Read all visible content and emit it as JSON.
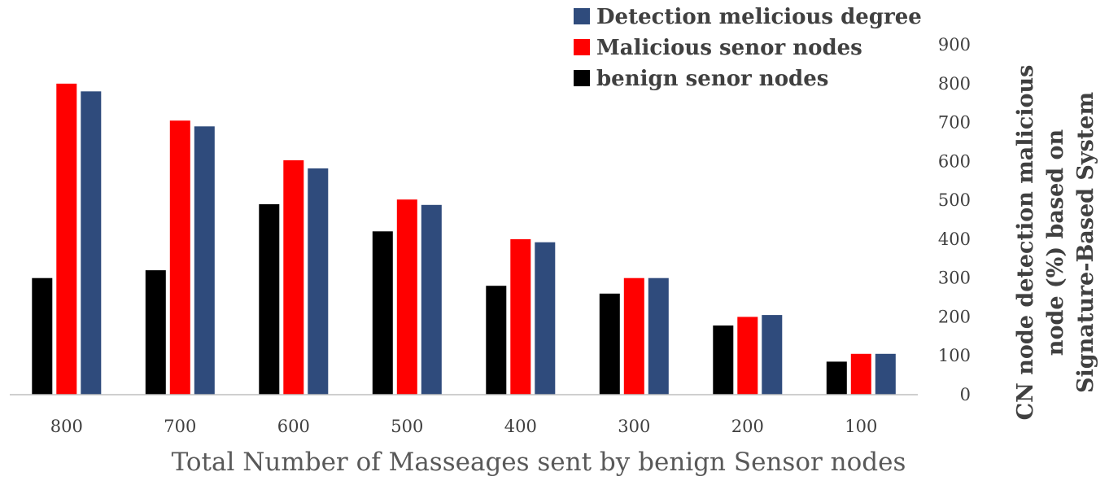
{
  "chart_data": {
    "type": "bar",
    "title": "",
    "xlabel": "Total Number of Masseages sent by benign Sensor nodes",
    "ylabel_lines": [
      "CN node detection malicious",
      "node (%) based on",
      "Signature-Based System"
    ],
    "y_axis_side": "right",
    "ylim": [
      0,
      900
    ],
    "yticks": [
      0,
      100,
      200,
      300,
      400,
      500,
      600,
      700,
      800,
      900
    ],
    "categories": [
      "800",
      "700",
      "600",
      "500",
      "400",
      "300",
      "200",
      "100"
    ],
    "series": [
      {
        "name": "benign senor nodes",
        "color": "#000000",
        "values": [
          300,
          320,
          490,
          420,
          280,
          260,
          178,
          85
        ]
      },
      {
        "name": "Malicious senor nodes",
        "color": "#ff0000",
        "values": [
          800,
          705,
          603,
          502,
          400,
          300,
          200,
          105
        ]
      },
      {
        "name": "Detection melicious degree",
        "color": "#2f4b7c",
        "values": [
          780,
          690,
          582,
          488,
          392,
          300,
          205,
          105
        ]
      }
    ],
    "legend": {
      "placement": "top-right",
      "order": [
        "Detection melicious degree",
        "Malicious senor nodes",
        "benign senor nodes"
      ]
    },
    "grid": false
  }
}
